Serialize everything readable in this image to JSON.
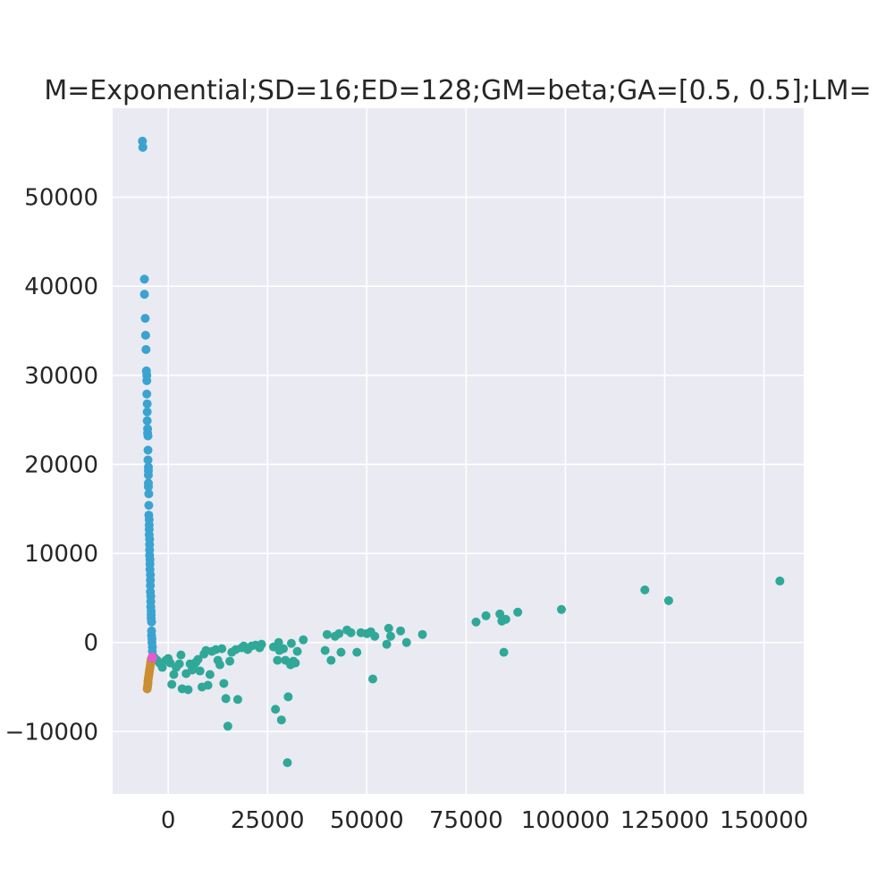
{
  "chart_data": {
    "type": "scatter",
    "title": "M=Exponential;SD=16;ED=128;GM=beta;GA=[0.5, 0.5];LM=",
    "xlabel": "",
    "ylabel": "",
    "xlim": [
      -14000,
      160000
    ],
    "ylim": [
      -17000,
      60000
    ],
    "xticks": [
      0,
      25000,
      50000,
      75000,
      100000,
      125000,
      150000
    ],
    "xtick_labels": [
      "0",
      "25000",
      "50000",
      "75000",
      "100000",
      "125000",
      "150000"
    ],
    "yticks": [
      -10000,
      0,
      10000,
      20000,
      30000,
      40000,
      50000
    ],
    "ytick_labels": [
      "−10000",
      "0",
      "10000",
      "20000",
      "30000",
      "40000",
      "50000"
    ],
    "grid": true,
    "background": "#eaeaf2",
    "series": [
      {
        "color": "#3ba3d0",
        "points": [
          [
            -6500,
            56300
          ],
          [
            -6400,
            55600
          ],
          [
            -6000,
            40800
          ],
          [
            -6000,
            39100
          ],
          [
            -5800,
            36400
          ],
          [
            -5700,
            34500
          ],
          [
            -5600,
            32900
          ],
          [
            -5500,
            30500
          ],
          [
            -5400,
            30000
          ],
          [
            -5400,
            29400
          ],
          [
            -5400,
            27900
          ],
          [
            -5300,
            26800
          ],
          [
            -5300,
            25900
          ],
          [
            -5300,
            24900
          ],
          [
            -5200,
            24000
          ],
          [
            -5200,
            23500
          ],
          [
            -5100,
            23200
          ],
          [
            -5100,
            21600
          ],
          [
            -5100,
            20500
          ],
          [
            -5000,
            19700
          ],
          [
            -5000,
            19300
          ],
          [
            -5000,
            18800
          ],
          [
            -5000,
            17900
          ],
          [
            -5000,
            17500
          ],
          [
            -4900,
            16700
          ],
          [
            -4900,
            15400
          ],
          [
            -4900,
            14300
          ],
          [
            -4800,
            13800
          ],
          [
            -4800,
            13200
          ],
          [
            -4800,
            12700
          ],
          [
            -4800,
            12100
          ],
          [
            -4700,
            11600
          ],
          [
            -4700,
            11000
          ],
          [
            -4700,
            10400
          ],
          [
            -4700,
            9800
          ],
          [
            -4600,
            9300
          ],
          [
            -4600,
            8800
          ],
          [
            -4600,
            8200
          ],
          [
            -4500,
            7600
          ],
          [
            -4500,
            7000
          ],
          [
            -4500,
            6400
          ],
          [
            -4500,
            5700
          ],
          [
            -4400,
            5200
          ],
          [
            -4400,
            4600
          ],
          [
            -4400,
            4000
          ],
          [
            -4300,
            3500
          ],
          [
            -4300,
            3100
          ],
          [
            -4300,
            2700
          ],
          [
            -4200,
            2300
          ],
          [
            -4200,
            1300
          ],
          [
            -4200,
            800
          ],
          [
            -4100,
            400
          ],
          [
            -4100,
            0
          ],
          [
            -4000,
            -500
          ],
          [
            -4000,
            -1000
          ]
        ]
      },
      {
        "color": "#30a898",
        "points": [
          [
            -3500,
            -1700
          ],
          [
            -2800,
            -2000
          ],
          [
            -2200,
            -2300
          ],
          [
            -1500,
            -2800
          ],
          [
            -600,
            -2000
          ],
          [
            0,
            -1800
          ],
          [
            500,
            -2300
          ],
          [
            900,
            -4700
          ],
          [
            1400,
            -3600
          ],
          [
            2000,
            -2800
          ],
          [
            2800,
            -2400
          ],
          [
            3200,
            -1400
          ],
          [
            3500,
            -5200
          ],
          [
            4500,
            -3500
          ],
          [
            5000,
            -5300
          ],
          [
            5500,
            -2400
          ],
          [
            6000,
            -3100
          ],
          [
            6500,
            -2500
          ],
          [
            7000,
            -2200
          ],
          [
            7500,
            -1900
          ],
          [
            8000,
            -3200
          ],
          [
            8500,
            -5000
          ],
          [
            9000,
            -1300
          ],
          [
            9500,
            -900
          ],
          [
            10000,
            -4800
          ],
          [
            10500,
            -3600
          ],
          [
            11000,
            -1000
          ],
          [
            12000,
            -800
          ],
          [
            12500,
            -2000
          ],
          [
            13000,
            -2500
          ],
          [
            13500,
            -700
          ],
          [
            14000,
            -4600
          ],
          [
            14500,
            -6300
          ],
          [
            15000,
            -9400
          ],
          [
            15500,
            -2100
          ],
          [
            16000,
            -1100
          ],
          [
            17000,
            -800
          ],
          [
            17500,
            -6400
          ],
          [
            18500,
            -600
          ],
          [
            19000,
            -400
          ],
          [
            20000,
            -800
          ],
          [
            21000,
            -400
          ],
          [
            22000,
            -300
          ],
          [
            23000,
            -600
          ],
          [
            23500,
            -200
          ],
          [
            26500,
            -500
          ],
          [
            27000,
            -7500
          ],
          [
            27500,
            -2000
          ],
          [
            27800,
            0
          ],
          [
            28000,
            -900
          ],
          [
            28500,
            -8700
          ],
          [
            29000,
            -700
          ],
          [
            29500,
            -2000
          ],
          [
            30000,
            -13500
          ],
          [
            30200,
            -6100
          ],
          [
            30800,
            -2500
          ],
          [
            31000,
            -100
          ],
          [
            31500,
            -2100
          ],
          [
            32000,
            -2300
          ],
          [
            32500,
            -1000
          ],
          [
            34000,
            300
          ],
          [
            39500,
            -900
          ],
          [
            40000,
            900
          ],
          [
            41000,
            -2000
          ],
          [
            42000,
            700
          ],
          [
            43000,
            1000
          ],
          [
            43500,
            -1100
          ],
          [
            45000,
            1400
          ],
          [
            46000,
            1100
          ],
          [
            47500,
            -1100
          ],
          [
            48500,
            1100
          ],
          [
            50000,
            1000
          ],
          [
            51000,
            1200
          ],
          [
            51500,
            -4100
          ],
          [
            52000,
            700
          ],
          [
            55000,
            -200
          ],
          [
            55500,
            1600
          ],
          [
            56000,
            700
          ],
          [
            58500,
            1300
          ],
          [
            60000,
            0
          ],
          [
            64000,
            900
          ],
          [
            77500,
            2300
          ],
          [
            80000,
            3000
          ],
          [
            83500,
            3200
          ],
          [
            84000,
            2400
          ],
          [
            84500,
            -1100
          ],
          [
            85000,
            2600
          ],
          [
            88000,
            3400
          ],
          [
            99000,
            3700
          ],
          [
            120000,
            5900
          ],
          [
            126000,
            4700
          ],
          [
            154000,
            6900
          ]
        ]
      },
      {
        "color": "#c98f31",
        "points": [
          [
            -5300,
            -5200
          ],
          [
            -5200,
            -4900
          ],
          [
            -5100,
            -4600
          ],
          [
            -5100,
            -4300
          ],
          [
            -5000,
            -4000
          ],
          [
            -4900,
            -3700
          ],
          [
            -4800,
            -3400
          ],
          [
            -4700,
            -3100
          ],
          [
            -4600,
            -2800
          ],
          [
            -4500,
            -2500
          ],
          [
            -4400,
            -2200
          ],
          [
            -4300,
            -1900
          ]
        ]
      },
      {
        "color": "#e05ccd",
        "points": [
          [
            -4100,
            -1700
          ],
          [
            -4000,
            -1600
          ],
          [
            -3900,
            -1750
          ]
        ]
      }
    ]
  }
}
